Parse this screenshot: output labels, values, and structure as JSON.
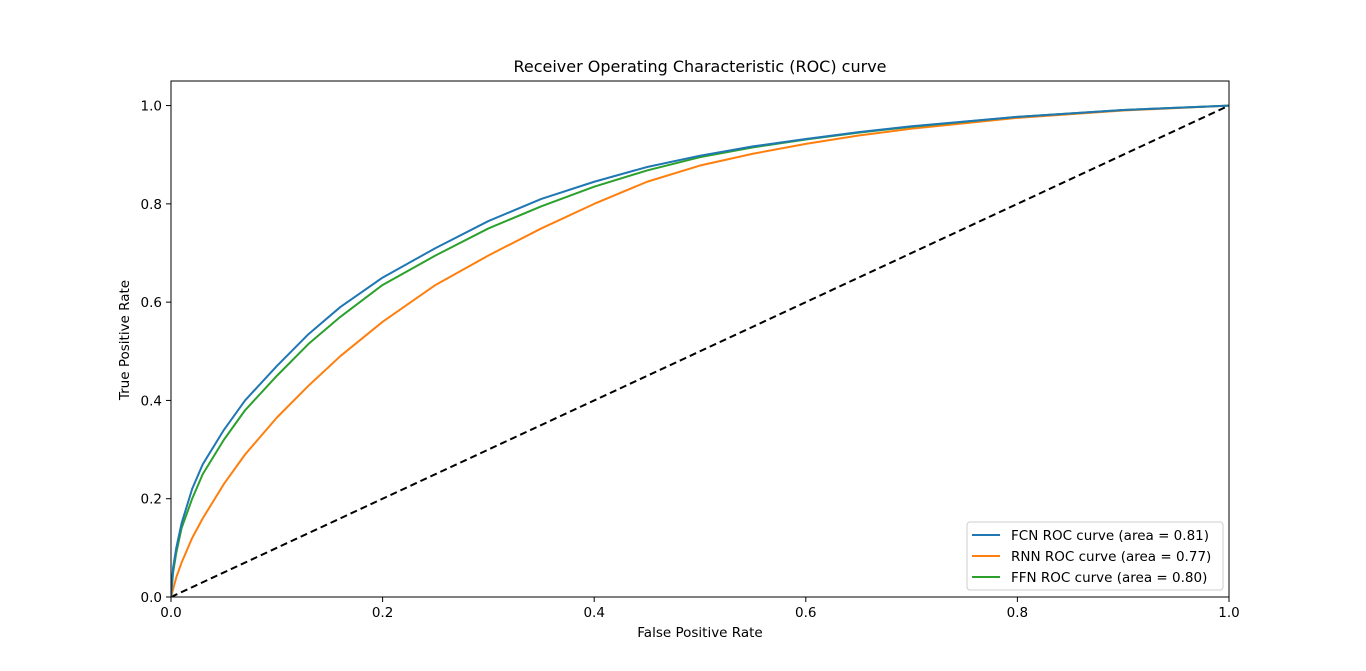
{
  "chart_data": {
    "type": "line",
    "title": "Receiver Operating Characteristic (ROC) curve",
    "xlabel": "False Positive Rate",
    "ylabel": "True Positive Rate",
    "xlim": [
      0.0,
      1.0
    ],
    "ylim": [
      0.0,
      1.05
    ],
    "xticks": [
      0.0,
      0.2,
      0.4,
      0.6,
      0.8,
      1.0
    ],
    "xtick_labels": [
      "0.0",
      "0.2",
      "0.4",
      "0.6",
      "0.8",
      "1.0"
    ],
    "yticks": [
      0.0,
      0.2,
      0.4,
      0.6,
      0.8,
      1.0
    ],
    "ytick_labels": [
      "0.0",
      "0.2",
      "0.4",
      "0.6",
      "0.8",
      "1.0"
    ],
    "grid": false,
    "legend_position": "lower-right",
    "series": [
      {
        "name": "FCN ROC curve (area = 0.81)",
        "color": "#1f77b4",
        "x": [
          0.0,
          0.002,
          0.005,
          0.01,
          0.02,
          0.03,
          0.05,
          0.07,
          0.1,
          0.13,
          0.16,
          0.2,
          0.25,
          0.3,
          0.35,
          0.4,
          0.45,
          0.5,
          0.55,
          0.6,
          0.65,
          0.7,
          0.8,
          0.9,
          1.0
        ],
        "y": [
          0.0,
          0.06,
          0.1,
          0.15,
          0.22,
          0.27,
          0.34,
          0.4,
          0.47,
          0.535,
          0.59,
          0.65,
          0.71,
          0.765,
          0.81,
          0.845,
          0.875,
          0.898,
          0.917,
          0.932,
          0.946,
          0.958,
          0.977,
          0.991,
          1.0
        ]
      },
      {
        "name": "RNN ROC curve (area = 0.77)",
        "color": "#ff7f0e",
        "x": [
          0.0,
          0.005,
          0.01,
          0.02,
          0.03,
          0.05,
          0.07,
          0.1,
          0.13,
          0.16,
          0.2,
          0.25,
          0.3,
          0.35,
          0.4,
          0.45,
          0.5,
          0.55,
          0.6,
          0.65,
          0.7,
          0.8,
          0.9,
          1.0
        ],
        "y": [
          0.0,
          0.04,
          0.07,
          0.12,
          0.16,
          0.23,
          0.29,
          0.365,
          0.43,
          0.49,
          0.56,
          0.635,
          0.695,
          0.75,
          0.8,
          0.845,
          0.878,
          0.902,
          0.922,
          0.939,
          0.953,
          0.975,
          0.99,
          1.0
        ]
      },
      {
        "name": "FFN ROC curve (area = 0.80)",
        "color": "#2ca02c",
        "x": [
          0.0,
          0.002,
          0.005,
          0.01,
          0.02,
          0.03,
          0.05,
          0.07,
          0.1,
          0.13,
          0.16,
          0.2,
          0.25,
          0.3,
          0.35,
          0.4,
          0.45,
          0.5,
          0.55,
          0.6,
          0.65,
          0.7,
          0.8,
          0.9,
          1.0
        ],
        "y": [
          0.0,
          0.05,
          0.09,
          0.14,
          0.2,
          0.25,
          0.32,
          0.38,
          0.45,
          0.515,
          0.57,
          0.635,
          0.695,
          0.75,
          0.795,
          0.835,
          0.868,
          0.895,
          0.915,
          0.931,
          0.945,
          0.957,
          0.977,
          0.991,
          1.0
        ]
      }
    ],
    "reference_line": {
      "x": [
        0.0,
        1.0
      ],
      "y": [
        0.0,
        1.0
      ],
      "color": "#000000",
      "style": "dashed"
    }
  }
}
